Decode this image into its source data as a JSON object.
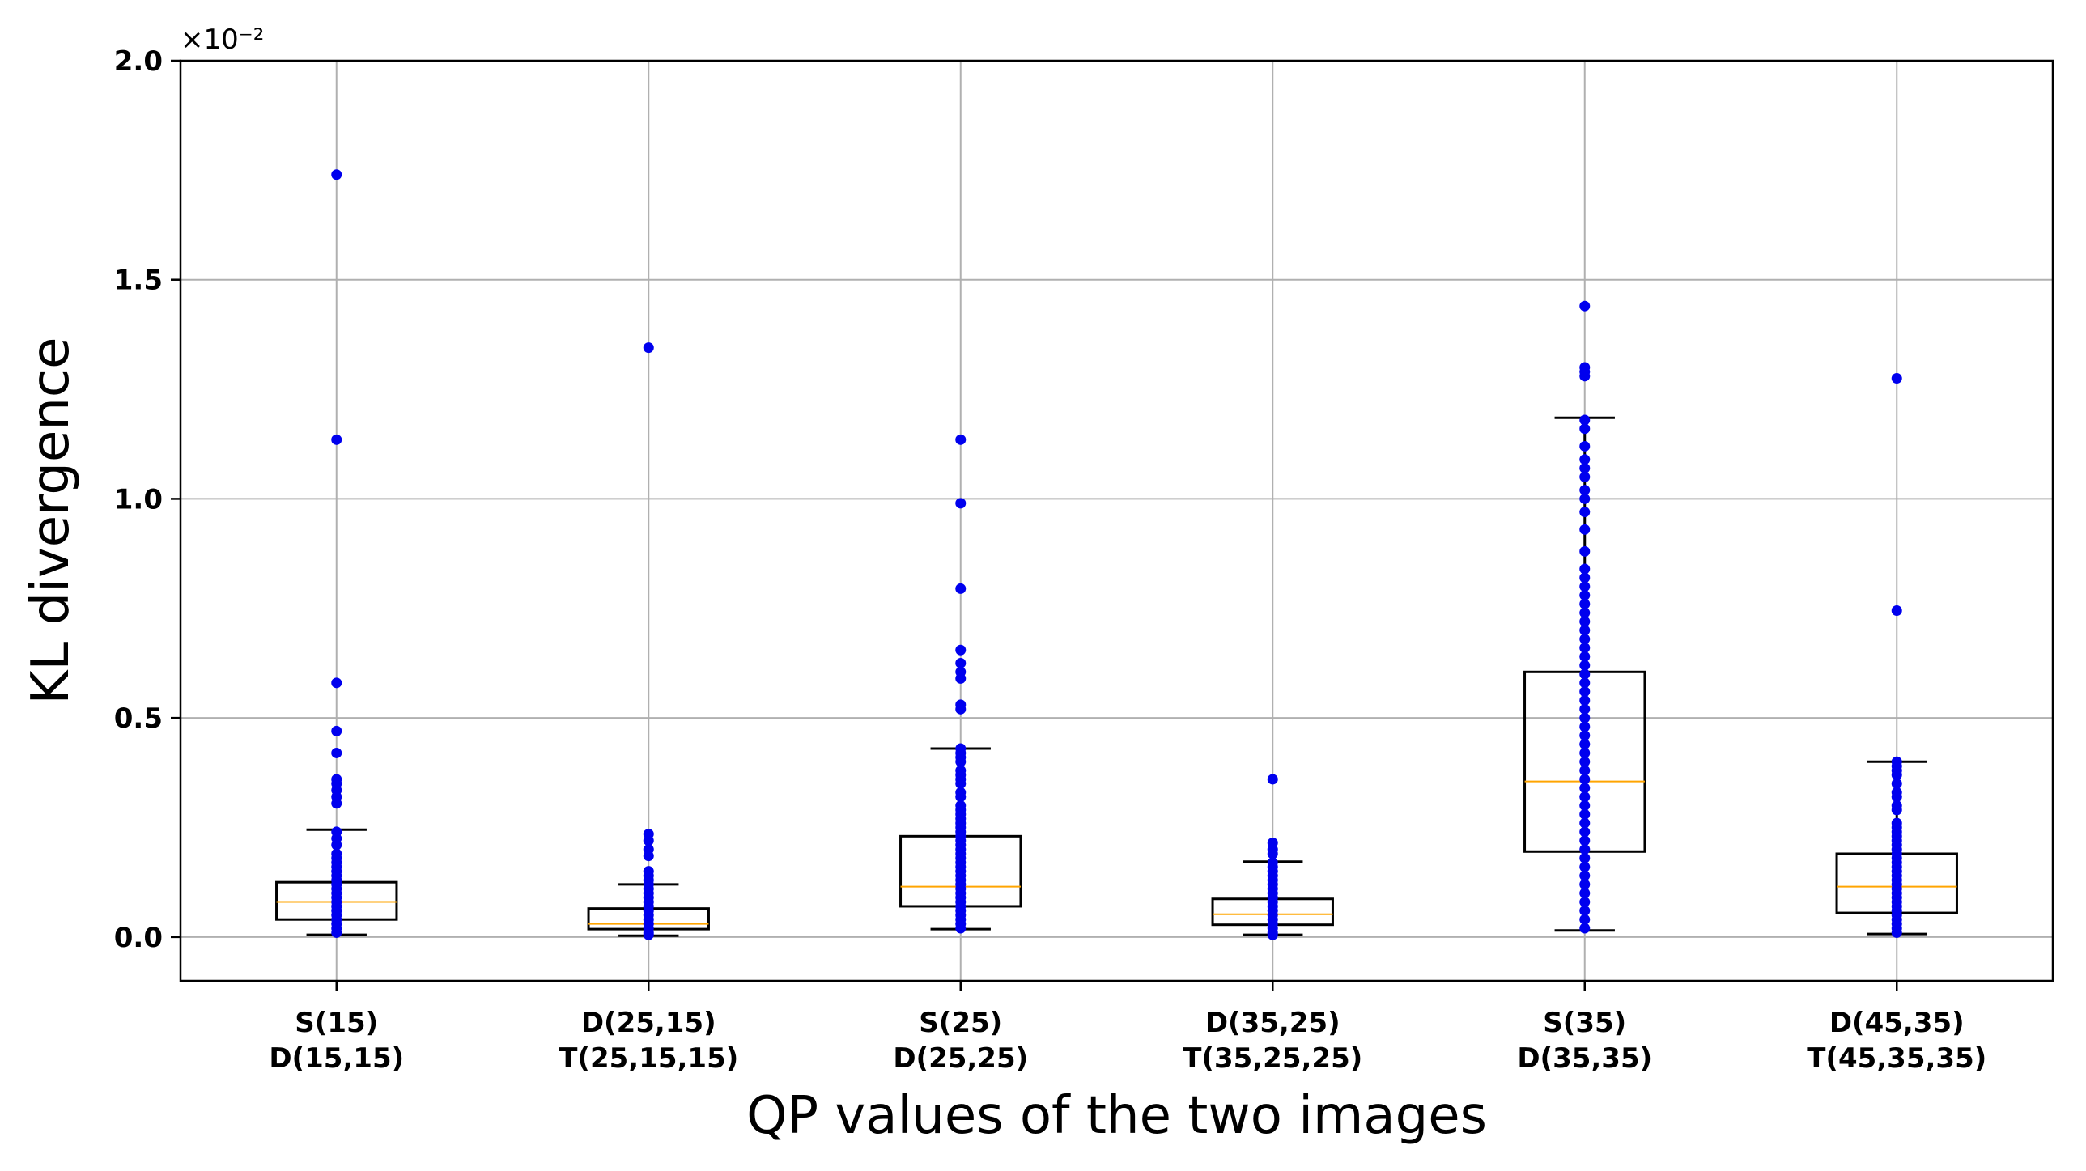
{
  "chart_data": {
    "type": "box",
    "title": "",
    "xlabel": "QP values of the two images",
    "ylabel": "KL divergence",
    "y_offset_label": "×10⁻²",
    "ylim": [
      -0.1,
      2.0
    ],
    "yticks": [
      0.0,
      0.5,
      1.0,
      1.5,
      2.0
    ],
    "ytick_labels": [
      "0.0",
      "0.5",
      "1.0",
      "1.5",
      "2.0"
    ],
    "grid": true,
    "categories": [
      [
        "S(15)",
        "D(15,15)"
      ],
      [
        "D(25,15)",
        "T(25,15,15)"
      ],
      [
        "S(25)",
        "D(25,25)"
      ],
      [
        "D(35,25)",
        "T(35,25,25)"
      ],
      [
        "S(35)",
        "D(35,35)"
      ],
      [
        "D(45,35)",
        "T(45,35,35)"
      ]
    ],
    "boxes": [
      {
        "whisker_low": 0.005,
        "q1": 0.04,
        "median": 0.08,
        "q3": 0.125,
        "whisker_high": 0.245
      },
      {
        "whisker_low": 0.003,
        "q1": 0.018,
        "median": 0.03,
        "q3": 0.065,
        "whisker_high": 0.12
      },
      {
        "whisker_low": 0.018,
        "q1": 0.07,
        "median": 0.115,
        "q3": 0.23,
        "whisker_high": 0.43
      },
      {
        "whisker_low": 0.005,
        "q1": 0.028,
        "median": 0.052,
        "q3": 0.087,
        "whisker_high": 0.172
      },
      {
        "whisker_low": 0.015,
        "q1": 0.195,
        "median": 0.355,
        "q3": 0.605,
        "whisker_high": 1.185
      },
      {
        "whisker_low": 0.007,
        "q1": 0.055,
        "median": 0.115,
        "q3": 0.19,
        "whisker_high": 0.4
      }
    ],
    "points": [
      [
        1.74,
        1.135,
        0.58,
        0.47,
        0.42,
        0.36,
        0.35,
        0.335,
        0.32,
        0.305,
        0.24,
        0.225,
        0.21,
        0.19,
        0.18,
        0.17,
        0.16,
        0.15,
        0.14,
        0.13,
        0.12,
        0.11,
        0.1,
        0.09,
        0.08,
        0.07,
        0.06,
        0.05,
        0.04,
        0.03,
        0.02,
        0.01
      ],
      [
        1.345,
        0.235,
        0.22,
        0.2,
        0.185,
        0.15,
        0.14,
        0.13,
        0.12,
        0.11,
        0.1,
        0.09,
        0.08,
        0.07,
        0.06,
        0.05,
        0.04,
        0.03,
        0.02,
        0.01,
        0.005
      ],
      [
        1.135,
        0.99,
        0.795,
        0.655,
        0.625,
        0.605,
        0.59,
        0.53,
        0.52,
        0.43,
        0.42,
        0.41,
        0.4,
        0.38,
        0.37,
        0.36,
        0.35,
        0.33,
        0.32,
        0.3,
        0.29,
        0.28,
        0.27,
        0.26,
        0.25,
        0.24,
        0.23,
        0.22,
        0.21,
        0.2,
        0.19,
        0.18,
        0.17,
        0.16,
        0.15,
        0.14,
        0.13,
        0.12,
        0.11,
        0.1,
        0.09,
        0.08,
        0.07,
        0.06,
        0.05,
        0.04,
        0.03,
        0.02
      ],
      [
        0.36,
        0.215,
        0.2,
        0.19,
        0.17,
        0.16,
        0.15,
        0.14,
        0.13,
        0.12,
        0.11,
        0.1,
        0.09,
        0.08,
        0.07,
        0.06,
        0.05,
        0.04,
        0.03,
        0.02,
        0.01,
        0.005
      ],
      [
        1.44,
        1.3,
        1.29,
        1.28,
        1.18,
        1.16,
        1.12,
        1.09,
        1.07,
        1.05,
        1.02,
        1.0,
        0.97,
        0.93,
        0.88,
        0.84,
        0.82,
        0.8,
        0.78,
        0.76,
        0.74,
        0.72,
        0.7,
        0.68,
        0.66,
        0.64,
        0.62,
        0.6,
        0.58,
        0.56,
        0.54,
        0.52,
        0.5,
        0.48,
        0.46,
        0.44,
        0.42,
        0.4,
        0.38,
        0.36,
        0.34,
        0.32,
        0.3,
        0.28,
        0.26,
        0.24,
        0.22,
        0.2,
        0.18,
        0.16,
        0.14,
        0.12,
        0.1,
        0.08,
        0.06,
        0.04,
        0.02
      ],
      [
        1.275,
        0.745,
        0.4,
        0.39,
        0.38,
        0.37,
        0.35,
        0.33,
        0.32,
        0.3,
        0.29,
        0.26,
        0.25,
        0.24,
        0.23,
        0.22,
        0.21,
        0.2,
        0.19,
        0.18,
        0.17,
        0.16,
        0.15,
        0.14,
        0.13,
        0.12,
        0.11,
        0.1,
        0.09,
        0.08,
        0.07,
        0.06,
        0.05,
        0.04,
        0.03,
        0.02,
        0.01
      ]
    ],
    "colors": {
      "points": "#0000ee",
      "median": "#ffa500",
      "box": "#000000",
      "grid": "#b0b0b0"
    }
  }
}
